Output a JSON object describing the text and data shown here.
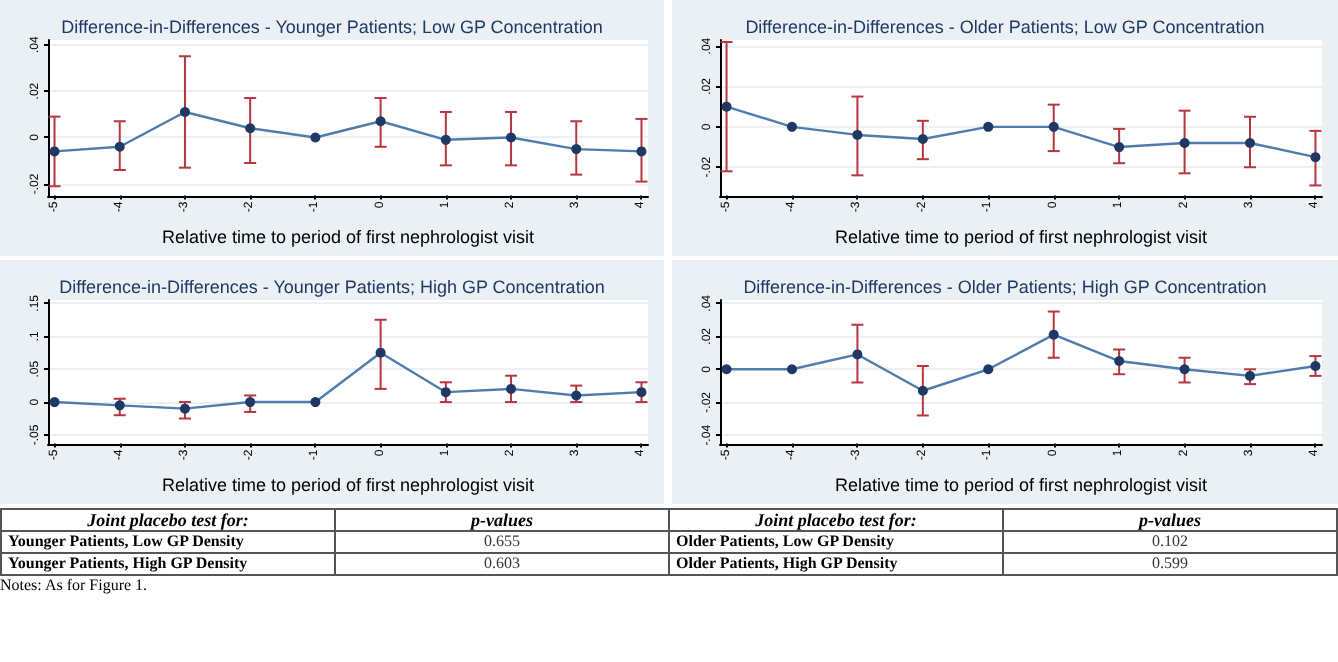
{
  "chart_data": [
    {
      "type": "line",
      "title": "Difference-in-Differences - Younger Patients; Low GP Concentration",
      "xlabel": "Relative time to period of first nephrologist visit",
      "grid": "y",
      "marker": "circle",
      "line_style": "solid",
      "xlim": [
        -5.1,
        4.1
      ],
      "xticks": [
        -5,
        -4,
        -3,
        -2,
        -1,
        0,
        1,
        2,
        3,
        4
      ],
      "ylim": [
        -0.025,
        0.042
      ],
      "yticks": [
        {
          "value": -0.02,
          "label": "-.02"
        },
        {
          "value": 0,
          "label": "0"
        },
        {
          "value": 0.02,
          "label": ".02"
        },
        {
          "value": 0.04,
          "label": ".04"
        }
      ],
      "series": [
        {
          "color": "#4f7cac",
          "x": [
            -5,
            -4,
            -3,
            -2,
            -1,
            0,
            1,
            2,
            3,
            4
          ],
          "values": [
            -0.006,
            -0.004,
            0.011,
            0.004,
            0,
            0.007,
            -0.001,
            0,
            -0.005,
            -0.006
          ],
          "errors": [
            [
              -0.021,
              0.009
            ],
            [
              -0.014,
              0.007
            ],
            [
              -0.013,
              0.035
            ],
            [
              -0.011,
              0.017
            ],
            null,
            [
              -0.004,
              0.017
            ],
            [
              -0.012,
              0.011
            ],
            [
              -0.012,
              0.011
            ],
            [
              -0.016,
              0.007
            ],
            [
              -0.019,
              0.008
            ]
          ]
        }
      ]
    },
    {
      "type": "line",
      "title": "Difference-in-Differences - Older Patients; Low GP Concentration",
      "xlabel": "Relative time to period of first nephrologist visit",
      "grid": "y",
      "marker": "circle",
      "line_style": "solid",
      "xlim": [
        -5.1,
        4.1
      ],
      "xticks": [
        -5,
        -4,
        -3,
        -2,
        -1,
        0,
        1,
        2,
        3,
        4
      ],
      "ylim": [
        -0.034,
        0.043
      ],
      "yticks": [
        {
          "value": -0.02,
          "label": "-.02"
        },
        {
          "value": 0,
          "label": "0"
        },
        {
          "value": 0.02,
          "label": ".02"
        },
        {
          "value": 0.04,
          "label": ".04"
        }
      ],
      "series": [
        {
          "color": "#4f7cac",
          "x": [
            -5,
            -4,
            -3,
            -2,
            -1,
            0,
            1,
            2,
            3,
            4
          ],
          "values": [
            0.01,
            0,
            -0.004,
            -0.006,
            0,
            0,
            -0.01,
            -0.008,
            -0.008,
            -0.015
          ],
          "errors": [
            [
              -0.022,
              0.042
            ],
            null,
            [
              -0.024,
              0.015
            ],
            [
              -0.016,
              0.003
            ],
            null,
            [
              -0.012,
              0.011
            ],
            [
              -0.018,
              -0.001
            ],
            [
              -0.023,
              0.008
            ],
            [
              -0.02,
              0.005
            ],
            [
              -0.029,
              -0.002
            ]
          ]
        }
      ]
    },
    {
      "type": "line",
      "title": "Difference-in-Differences - Younger Patients; High GP Concentration",
      "xlabel": "Relative time to period of first nephrologist visit",
      "grid": "y",
      "marker": "circle",
      "line_style": "solid",
      "xlim": [
        -5.1,
        4.1
      ],
      "xticks": [
        -5,
        -4,
        -3,
        -2,
        -1,
        0,
        1,
        2,
        3,
        4
      ],
      "ylim": [
        -0.063,
        0.155
      ],
      "yticks": [
        {
          "value": -0.05,
          "label": "-.05"
        },
        {
          "value": 0,
          "label": "0"
        },
        {
          "value": 0.05,
          "label": ".05"
        },
        {
          "value": 0.1,
          "label": ".1"
        },
        {
          "value": 0.15,
          "label": ".15"
        }
      ],
      "series": [
        {
          "color": "#4f7cac",
          "x": [
            -5,
            -4,
            -3,
            -2,
            -1,
            0,
            1,
            2,
            3,
            4
          ],
          "values": [
            0,
            -0.005,
            -0.01,
            0,
            0,
            0.075,
            0.015,
            0.02,
            0.01,
            0.015
          ],
          "errors": [
            null,
            [
              -0.02,
              0.005
            ],
            [
              -0.025,
              0
            ],
            [
              -0.015,
              0.01
            ],
            null,
            [
              0.02,
              0.125
            ],
            [
              0,
              0.03
            ],
            [
              0,
              0.04
            ],
            [
              0,
              0.025
            ],
            [
              0,
              0.03
            ]
          ]
        }
      ]
    },
    {
      "type": "line",
      "title": "Difference-in-Differences - Older Patients; High GP Concentration",
      "xlabel": "Relative time to period of first nephrologist visit",
      "grid": "y",
      "marker": "circle",
      "line_style": "solid",
      "xlim": [
        -5.1,
        4.1
      ],
      "xticks": [
        -5,
        -4,
        -3,
        -2,
        -1,
        0,
        1,
        2,
        3,
        4
      ],
      "ylim": [
        -0.045,
        0.042
      ],
      "yticks": [
        {
          "value": -0.04,
          "label": "-.04"
        },
        {
          "value": -0.02,
          "label": "-.02"
        },
        {
          "value": 0,
          "label": "0"
        },
        {
          "value": 0.02,
          "label": ".02"
        },
        {
          "value": 0.04,
          "label": ".04"
        }
      ],
      "series": [
        {
          "color": "#4f7cac",
          "x": [
            -5,
            -4,
            -3,
            -2,
            -1,
            0,
            1,
            2,
            3,
            4
          ],
          "values": [
            0,
            0,
            0.009,
            -0.013,
            0,
            0.021,
            0.005,
            0,
            -0.004,
            0.002
          ],
          "errors": [
            null,
            null,
            [
              -0.008,
              0.027
            ],
            [
              -0.028,
              0.002
            ],
            null,
            [
              0.007,
              0.035
            ],
            [
              -0.003,
              0.012
            ],
            [
              -0.008,
              0.007
            ],
            [
              -0.009,
              0
            ],
            [
              -0.004,
              0.008
            ]
          ]
        }
      ]
    },
    {
      "type": "other",
      "annotations": [
        "Joint placebo test for:",
        "p-values",
        "Joint placebo test for:",
        "p-values",
        "Younger Patients, Low GP Density",
        "0.655",
        "Older Patients, Low GP Density",
        "0.102",
        "Younger Patients, High GP Density",
        "0.603",
        "Older Patients, High GP Density",
        "0.599",
        "Notes: As for Figure 1."
      ]
    }
  ]
}
